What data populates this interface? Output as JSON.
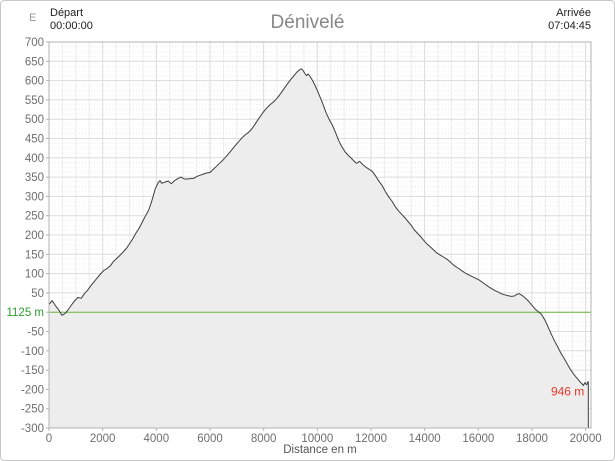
{
  "header": {
    "title": "Dénivelé",
    "axis_unit": "E",
    "depart_label": "Départ",
    "depart_time": "00:00:00",
    "arrivee_label": "Arrivée",
    "arrivee_time": "07:04:45"
  },
  "chart_data": {
    "type": "area",
    "title": "Dénivelé",
    "xlabel": "Distance en m",
    "ylabel": "",
    "xlim": [
      0,
      20200
    ],
    "ylim": [
      -300,
      700
    ],
    "x_ticks": [
      0,
      2000,
      4000,
      6000,
      8000,
      10000,
      12000,
      14000,
      16000,
      18000,
      20000
    ],
    "y_ticks": [
      700,
      650,
      600,
      550,
      500,
      450,
      400,
      350,
      300,
      250,
      200,
      150,
      100,
      50,
      0,
      -50,
      -100,
      -150,
      -200,
      -250,
      -300
    ],
    "grid": {
      "major_x": 2000,
      "minor_x": 500,
      "major_y": 50,
      "minor_y": 12.5
    },
    "baseline": {
      "value": 0,
      "label": "1125 m",
      "color": "#2d9e2d",
      "line_color": "#6cb33c"
    },
    "end_label": {
      "text": "946 m",
      "color": "#e8392b"
    },
    "colors": {
      "line": "#3d3d3d",
      "fill": "#ededed",
      "grid_major": "#dcdcdc",
      "grid_minor": "#ececec",
      "border": "#b3b3b3",
      "tick_text": "#6e6e6e",
      "axis_title_text": "#555555"
    },
    "legend": null,
    "series": [
      {
        "name": "elevation_relative_m",
        "points": [
          [
            0,
            20
          ],
          [
            120,
            30
          ],
          [
            240,
            17
          ],
          [
            360,
            6
          ],
          [
            480,
            -8
          ],
          [
            600,
            -3
          ],
          [
            720,
            7
          ],
          [
            840,
            19
          ],
          [
            960,
            30
          ],
          [
            1080,
            38
          ],
          [
            1200,
            36
          ],
          [
            1320,
            48
          ],
          [
            1440,
            57
          ],
          [
            1560,
            69
          ],
          [
            1680,
            79
          ],
          [
            1800,
            89
          ],
          [
            1920,
            99
          ],
          [
            2040,
            108
          ],
          [
            2160,
            113
          ],
          [
            2280,
            120
          ],
          [
            2400,
            131
          ],
          [
            2520,
            139
          ],
          [
            2640,
            147
          ],
          [
            2760,
            156
          ],
          [
            2880,
            165
          ],
          [
            3000,
            177
          ],
          [
            3120,
            190
          ],
          [
            3240,
            205
          ],
          [
            3360,
            218
          ],
          [
            3480,
            234
          ],
          [
            3600,
            250
          ],
          [
            3720,
            265
          ],
          [
            3840,
            290
          ],
          [
            3960,
            320
          ],
          [
            4080,
            337
          ],
          [
            4140,
            341
          ],
          [
            4200,
            334
          ],
          [
            4320,
            337
          ],
          [
            4440,
            340
          ],
          [
            4560,
            333
          ],
          [
            4680,
            341
          ],
          [
            4800,
            346
          ],
          [
            4920,
            350
          ],
          [
            5040,
            345
          ],
          [
            5160,
            345
          ],
          [
            5280,
            346
          ],
          [
            5400,
            347
          ],
          [
            5520,
            352
          ],
          [
            5640,
            355
          ],
          [
            5760,
            358
          ],
          [
            5880,
            361
          ],
          [
            6000,
            362
          ],
          [
            6120,
            370
          ],
          [
            6240,
            378
          ],
          [
            6360,
            386
          ],
          [
            6480,
            394
          ],
          [
            6600,
            403
          ],
          [
            6720,
            413
          ],
          [
            6840,
            423
          ],
          [
            6960,
            433
          ],
          [
            7080,
            443
          ],
          [
            7200,
            452
          ],
          [
            7320,
            460
          ],
          [
            7440,
            466
          ],
          [
            7560,
            475
          ],
          [
            7680,
            487
          ],
          [
            7800,
            500
          ],
          [
            7920,
            512
          ],
          [
            8040,
            523
          ],
          [
            8160,
            532
          ],
          [
            8280,
            540
          ],
          [
            8400,
            547
          ],
          [
            8520,
            556
          ],
          [
            8640,
            567
          ],
          [
            8760,
            579
          ],
          [
            8880,
            591
          ],
          [
            9000,
            602
          ],
          [
            9120,
            612
          ],
          [
            9240,
            622
          ],
          [
            9360,
            629
          ],
          [
            9420,
            630
          ],
          [
            9480,
            625
          ],
          [
            9540,
            618
          ],
          [
            9600,
            613
          ],
          [
            9660,
            617
          ],
          [
            9720,
            612
          ],
          [
            9840,
            598
          ],
          [
            9960,
            581
          ],
          [
            10080,
            561
          ],
          [
            10200,
            541
          ],
          [
            10320,
            518
          ],
          [
            10440,
            500
          ],
          [
            10560,
            485
          ],
          [
            10680,
            465
          ],
          [
            10800,
            444
          ],
          [
            10920,
            428
          ],
          [
            11040,
            415
          ],
          [
            11160,
            406
          ],
          [
            11280,
            398
          ],
          [
            11400,
            389
          ],
          [
            11460,
            386
          ],
          [
            11520,
            388
          ],
          [
            11580,
            391
          ],
          [
            11700,
            382
          ],
          [
            11820,
            375
          ],
          [
            11940,
            370
          ],
          [
            12060,
            364
          ],
          [
            12180,
            352
          ],
          [
            12300,
            339
          ],
          [
            12420,
            328
          ],
          [
            12540,
            312
          ],
          [
            12660,
            299
          ],
          [
            12780,
            288
          ],
          [
            12900,
            274
          ],
          [
            13020,
            263
          ],
          [
            13140,
            254
          ],
          [
            13260,
            245
          ],
          [
            13380,
            235
          ],
          [
            13500,
            225
          ],
          [
            13620,
            213
          ],
          [
            13740,
            204
          ],
          [
            13860,
            195
          ],
          [
            13980,
            185
          ],
          [
            14100,
            176
          ],
          [
            14220,
            169
          ],
          [
            14340,
            161
          ],
          [
            14460,
            153
          ],
          [
            14580,
            148
          ],
          [
            14700,
            143
          ],
          [
            14820,
            138
          ],
          [
            14940,
            131
          ],
          [
            15060,
            123
          ],
          [
            15180,
            117
          ],
          [
            15300,
            112
          ],
          [
            15420,
            106
          ],
          [
            15540,
            100
          ],
          [
            15660,
            96
          ],
          [
            15780,
            92
          ],
          [
            15900,
            88
          ],
          [
            16020,
            84
          ],
          [
            16140,
            78
          ],
          [
            16260,
            72
          ],
          [
            16380,
            66
          ],
          [
            16500,
            61
          ],
          [
            16620,
            56
          ],
          [
            16740,
            52
          ],
          [
            16860,
            48
          ],
          [
            16980,
            45
          ],
          [
            17100,
            43
          ],
          [
            17220,
            41
          ],
          [
            17340,
            42
          ],
          [
            17460,
            47
          ],
          [
            17520,
            48
          ],
          [
            17640,
            43
          ],
          [
            17760,
            36
          ],
          [
            17880,
            28
          ],
          [
            18000,
            18
          ],
          [
            18120,
            8
          ],
          [
            18240,
            1
          ],
          [
            18360,
            -6
          ],
          [
            18480,
            -20
          ],
          [
            18600,
            -38
          ],
          [
            18720,
            -57
          ],
          [
            18840,
            -74
          ],
          [
            18960,
            -90
          ],
          [
            19080,
            -106
          ],
          [
            19200,
            -120
          ],
          [
            19320,
            -135
          ],
          [
            19440,
            -149
          ],
          [
            19560,
            -161
          ],
          [
            19680,
            -171
          ],
          [
            19800,
            -181
          ],
          [
            19920,
            -190
          ],
          [
            19950,
            -185
          ],
          [
            19980,
            -182
          ],
          [
            20010,
            -186
          ],
          [
            20040,
            -188
          ],
          [
            20070,
            -183
          ],
          [
            20100,
            -179
          ]
        ]
      }
    ]
  }
}
